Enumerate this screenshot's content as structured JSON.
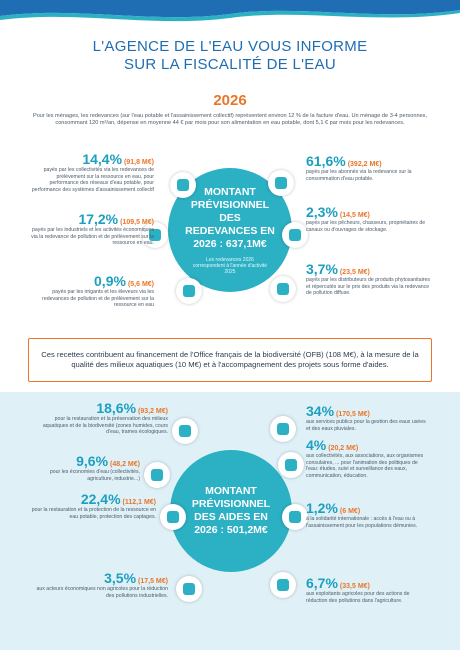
{
  "header": {
    "title_line1": "L'AGENCE DE L'EAU VOUS INFORME",
    "title_line2": "SUR LA FISCALITÉ DE L'EAU"
  },
  "year": "2026",
  "intro": "Pour les ménages, les redevances (sur l'eau potable et l'assainissement collectif) représentent environ 12 % de la facture d'eau. Un ménage de 3-4 personnes, consommant 120 m³/an, dépense en moyenne 44 € par mois pour son alimentation en eau potable, dont 5,1 € par mois pour les redevances.",
  "redevances": {
    "center_title": "MONTANT PRÉVISIONNEL DES REDEVANCES EN 2026 : 637,1M€",
    "center_note": "Les redevances 2026 correspondent à l'année d'activité 2025",
    "items": [
      {
        "percent": "14,4%",
        "amount": "(91,8 M€)",
        "text": "payés par les collectivités via les redevances de prélèvement sur la ressource en eau, pour performance des réseaux d'eau potable, pour performance des systèmes d'assainissement collectif"
      },
      {
        "percent": "17,2%",
        "amount": "(109,5 M€)",
        "text": "payés par les industriels et les activités économiques via la redevance de pollution et de prélèvement sur la ressource en eau."
      },
      {
        "percent": "0,9%",
        "amount": "(5,6 M€)",
        "text": "payés par les irrigants et les éleveurs via les redevances de pollution et de prélèvement sur la ressource en eau"
      },
      {
        "percent": "61,6%",
        "amount": "(392,2 M€)",
        "text": "payés par les abonnés via la redevance sur la consommation d'eau potable."
      },
      {
        "percent": "2,3%",
        "amount": "(14,5 M€)",
        "text": "payés par les pêcheurs, chasseurs, propriétaires de canaux ou d'ouvrages de stockage."
      },
      {
        "percent": "3,7%",
        "amount": "(23,5 M€)",
        "text": "payés par les distributeurs de produits phytosanitaires et répercutés sur le prix des produits via la redevance de pollution diffuse."
      }
    ]
  },
  "note_box": "Ces recettes contribuent au financement de l'Office français de la biodiversité (OFB) (108 M€), à la mesure de la qualité des milieux aquatiques (10 M€) et à l'accompagnement des projets sous forme d'aides.",
  "aides": {
    "center_title": "MONTANT PRÉVISIONNEL DES AIDES EN 2026 : 501,2M€",
    "items": [
      {
        "percent": "18,6%",
        "amount": "(93,2 M€)",
        "text": "pour la restauration et la préservation des milieux aquatiques et de la biodiversité (zones humides, cours d'eau, trames écologiques."
      },
      {
        "percent": "9,6%",
        "amount": "(48,2 M€)",
        "text": "pour les économies d'eau (collectivités, agriculture, industrie...)"
      },
      {
        "percent": "22,4%",
        "amount": "(112,1 M€)",
        "text": "pour la restauration et la protection de la ressource en eau potable, protection des captages."
      },
      {
        "percent": "3,5%",
        "amount": "(17,5 M€)",
        "text": "aux acteurs économiques non agricoles pour la réduction des pollutions industrielles."
      },
      {
        "percent": "34%",
        "amount": "(170,5 M€)",
        "text": "aux services publics pour la gestion des eaux usées et des eaux pluviales."
      },
      {
        "percent": "4%",
        "amount": "(20,2 M€)",
        "text": "aux collectivités, aux associations, aux organismes consulaires, ... pour l'animation des politiques de l'eau: études, suivi et surveillance des eaux, communication, éducation."
      },
      {
        "percent": "1,2%",
        "amount": "(6 M€)",
        "text": "à la solidarité internationale : accès à l'eau ou à l'assainissement pour les populations démunies."
      },
      {
        "percent": "6,7%",
        "amount": "(33,5 M€)",
        "text": "aux exploitants agricoles pour des actions de réduction des pollutions dans l'agriculture."
      }
    ]
  }
}
